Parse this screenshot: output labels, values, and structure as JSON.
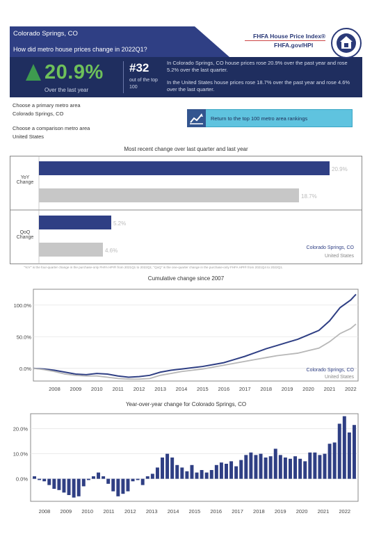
{
  "header": {
    "city": "Colorado Springs, CO",
    "question": "How did metro house prices change in 2022Q1?",
    "yoy_big": "20.9%",
    "yoy_caption": "Over the last year",
    "rank": "#32",
    "rank_sub": "out of the top 100",
    "desc1": "In Colorado Springs, CO house prices rose 20.9% over the past year and rose 5.2% over the last quarter.",
    "desc2": "In the United States house prices rose 18.7% over the past year and rose 4.6% over the last quarter."
  },
  "brand": {
    "title": "FHFA House Price Index®",
    "url": "FHFA.gov/HPI",
    "seal_text": "FEDERAL HOUSING FINANCE AGENCY"
  },
  "selectors": {
    "primary_label": "Choose a primary metro area",
    "primary_value": "Colorado Springs, CO",
    "comparison_label": "Choose a comparison metro area",
    "comparison_value": "United States",
    "return_label": "Return to the top 100 metro area rankings"
  },
  "colors": {
    "primary": "#2f3f84",
    "comparison": "#b7b7b7",
    "header_dark": "#1f2e5f",
    "accent_green": "#6ec05a",
    "button": "#5fc3df"
  },
  "chart_data": [
    {
      "type": "bar",
      "title": "Most recent change over last quarter and last year",
      "categories": [
        "YoY Change",
        "QoQ Change"
      ],
      "series": [
        {
          "name": "Colorado Springs, CO",
          "values": [
            20.9,
            5.2
          ]
        },
        {
          "name": "United States",
          "values": [
            18.7,
            4.6
          ]
        }
      ],
      "value_labels": {
        "Colorado Springs, CO": [
          "20.9%",
          "5.2%"
        ],
        "United States": [
          "18.7%",
          "4.6%"
        ]
      },
      "orientation": "horizontal",
      "note": "\"YoY\" is the four-quarter change in the purchase-only FHFA HPI® from 2021Q1 to 2022Q1; \"QoQ\" is the one-quarter change in the purchase-only FHFA HPI® from 2021Q4 to 2022Q1.",
      "legend": "bottom-right"
    },
    {
      "type": "line",
      "title": "Cumulative change since 2007",
      "x_ticks": [
        "2008",
        "2009",
        "2010",
        "2011",
        "2012",
        "2013",
        "2014",
        "2015",
        "2016",
        "2017",
        "2018",
        "2019",
        "2020",
        "2021",
        "2022"
      ],
      "y_ticks": [
        "100.0%",
        "50.0%",
        "0.0%"
      ],
      "ylim": [
        -20,
        125
      ],
      "x": [
        2007.0,
        2007.5,
        2008.0,
        2008.5,
        2009.0,
        2009.5,
        2010.0,
        2010.5,
        2011.0,
        2011.5,
        2012.0,
        2012.5,
        2013.0,
        2013.5,
        2014.0,
        2014.5,
        2015.0,
        2015.5,
        2016.0,
        2016.5,
        2017.0,
        2017.5,
        2018.0,
        2018.5,
        2019.0,
        2019.5,
        2020.0,
        2020.5,
        2021.0,
        2021.5,
        2022.0,
        2022.25
      ],
      "series": [
        {
          "name": "Colorado Springs, CO",
          "values": [
            0,
            -1,
            -3,
            -6,
            -9,
            -10,
            -8,
            -9,
            -12,
            -14,
            -13,
            -11,
            -6,
            -3,
            -1,
            1,
            3,
            6,
            9,
            14,
            19,
            25,
            31,
            36,
            41,
            46,
            53,
            60,
            75,
            96,
            108,
            117
          ]
        },
        {
          "name": "United States",
          "values": [
            0,
            -2,
            -5,
            -9,
            -11,
            -12,
            -12,
            -14,
            -16,
            -17,
            -17,
            -16,
            -11,
            -8,
            -5,
            -3,
            -1,
            2,
            5,
            8,
            11,
            14,
            17,
            20,
            22,
            24,
            28,
            32,
            42,
            55,
            63,
            70
          ]
        }
      ],
      "legend": "bottom-right",
      "grid": true
    },
    {
      "type": "bar",
      "title": "Year-over-year change for Colorado Springs, CO",
      "x_ticks": [
        "2008",
        "2009",
        "2010",
        "2011",
        "2012",
        "2013",
        "2014",
        "2015",
        "2016",
        "2017",
        "2018",
        "2019",
        "2020",
        "2021",
        "2022"
      ],
      "y_ticks": [
        "20.0%",
        "10.0%",
        "0.0%"
      ],
      "ylim": [
        -9,
        26
      ],
      "values": [
        1.0,
        -0.5,
        -1.0,
        -2.5,
        -4.0,
        -4.5,
        -5.5,
        -6.5,
        -7.5,
        -7.0,
        -3.0,
        -0.5,
        1.0,
        2.5,
        1.0,
        -2.0,
        -5.0,
        -7.0,
        -6.0,
        -5.0,
        -1.0,
        -0.5,
        -2.5,
        1.0,
        2.0,
        4.5,
        8.5,
        10.0,
        8.5,
        5.5,
        4.5,
        3.0,
        5.5,
        2.5,
        3.5,
        2.5,
        3.5,
        5.5,
        6.5,
        6.0,
        7.0,
        5.0,
        7.5,
        9.5,
        10.5,
        9.5,
        10.0,
        8.5,
        9.0,
        12.0,
        9.5,
        8.5,
        8.0,
        9.0,
        8.0,
        7.0,
        10.5,
        10.5,
        9.5,
        10.0,
        14.0,
        14.5,
        22.0,
        25.0,
        18.5,
        21.5
      ],
      "grid": true
    }
  ]
}
